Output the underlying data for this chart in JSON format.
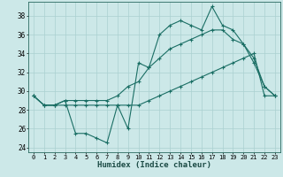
{
  "xlabel": "Humidex (Indice chaleur)",
  "bg_color": "#cce8e8",
  "grid_color": "#aad0d0",
  "line_color": "#1a6e64",
  "ylim": [
    23.5,
    39.5
  ],
  "xlim": [
    -0.5,
    23.5
  ],
  "yticks": [
    24,
    26,
    28,
    30,
    32,
    34,
    36,
    38
  ],
  "xticks": [
    0,
    1,
    2,
    3,
    4,
    5,
    6,
    7,
    8,
    9,
    10,
    11,
    12,
    13,
    14,
    15,
    16,
    17,
    18,
    19,
    20,
    21,
    22,
    23
  ],
  "line1_y": [
    29.5,
    28.5,
    28.5,
    29.0,
    25.5,
    25.5,
    25.0,
    24.5,
    28.5,
    26.0,
    33.0,
    32.5,
    36.0,
    37.0,
    37.5,
    37.0,
    36.5,
    39.0,
    37.0,
    36.5,
    35.0,
    33.0,
    30.5,
    29.5
  ],
  "line2_y": [
    29.5,
    28.5,
    28.5,
    29.0,
    29.0,
    29.0,
    29.0,
    29.0,
    29.5,
    30.5,
    31.0,
    32.5,
    33.5,
    34.5,
    35.0,
    35.5,
    36.0,
    36.5,
    36.5,
    35.5,
    35.0,
    33.5,
    30.5,
    29.5
  ],
  "line3_y": [
    29.5,
    28.5,
    28.5,
    28.5,
    28.5,
    28.5,
    28.5,
    28.5,
    28.5,
    28.5,
    28.5,
    29.0,
    29.5,
    30.0,
    30.5,
    31.0,
    31.5,
    32.0,
    32.5,
    33.0,
    33.5,
    34.0,
    29.5,
    29.5
  ],
  "xtick_fontsize": 5.0,
  "ytick_fontsize": 5.5,
  "xlabel_fontsize": 6.5
}
